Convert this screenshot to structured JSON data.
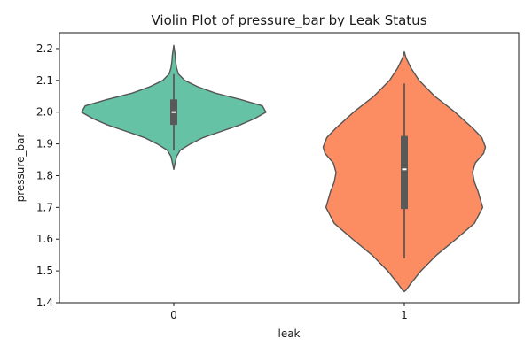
{
  "chart_data": {
    "type": "violin",
    "title": "Violin Plot of pressure_bar by Leak Status",
    "xlabel": "leak",
    "ylabel": "pressure_bar",
    "categories": [
      "0",
      "1"
    ],
    "ylim": [
      1.4,
      2.25
    ],
    "yticks": [
      1.4,
      1.5,
      1.6,
      1.7,
      1.8,
      1.9,
      2.0,
      2.1,
      2.2
    ],
    "ytick_labels": [
      "1.4",
      "1.5",
      "1.6",
      "1.7",
      "1.8",
      "1.9",
      "2.0",
      "2.1",
      "2.2"
    ],
    "grid": false,
    "colors": {
      "0": "#66c2a5",
      "1": "#fc8d62",
      "edge": "#555555",
      "box": "#595959",
      "median": "#ffffff"
    },
    "violins": [
      {
        "category": "0",
        "min": 1.82,
        "max": 2.21,
        "q1": 1.96,
        "median": 2.0,
        "q3": 2.04,
        "whisker_low": 1.88,
        "whisker_high": 2.12,
        "density": [
          [
            1.82,
            0.0
          ],
          [
            1.84,
            0.015
          ],
          [
            1.86,
            0.03
          ],
          [
            1.88,
            0.07
          ],
          [
            1.9,
            0.18
          ],
          [
            1.92,
            0.32
          ],
          [
            1.94,
            0.52
          ],
          [
            1.96,
            0.72
          ],
          [
            1.98,
            0.88
          ],
          [
            2.0,
            1.0
          ],
          [
            2.02,
            0.96
          ],
          [
            2.04,
            0.72
          ],
          [
            2.06,
            0.45
          ],
          [
            2.08,
            0.26
          ],
          [
            2.1,
            0.12
          ],
          [
            2.12,
            0.05
          ],
          [
            2.14,
            0.03
          ],
          [
            2.16,
            0.02
          ],
          [
            2.18,
            0.015
          ],
          [
            2.21,
            0.0
          ]
        ]
      },
      {
        "category": "1",
        "min": 1.435,
        "max": 2.19,
        "q1": 1.695,
        "median": 1.82,
        "q3": 1.925,
        "whisker_low": 1.54,
        "whisker_high": 2.09,
        "density": [
          [
            1.435,
            0.0
          ],
          [
            1.44,
            0.02
          ],
          [
            1.46,
            0.07
          ],
          [
            1.5,
            0.18
          ],
          [
            1.55,
            0.35
          ],
          [
            1.6,
            0.56
          ],
          [
            1.65,
            0.76
          ],
          [
            1.7,
            0.85
          ],
          [
            1.72,
            0.83
          ],
          [
            1.75,
            0.8
          ],
          [
            1.78,
            0.76
          ],
          [
            1.81,
            0.74
          ],
          [
            1.84,
            0.77
          ],
          [
            1.87,
            0.86
          ],
          [
            1.89,
            0.88
          ],
          [
            1.92,
            0.84
          ],
          [
            1.95,
            0.74
          ],
          [
            2.0,
            0.55
          ],
          [
            2.05,
            0.33
          ],
          [
            2.1,
            0.16
          ],
          [
            2.14,
            0.07
          ],
          [
            2.17,
            0.02
          ],
          [
            2.19,
            0.0
          ]
        ]
      }
    ]
  }
}
